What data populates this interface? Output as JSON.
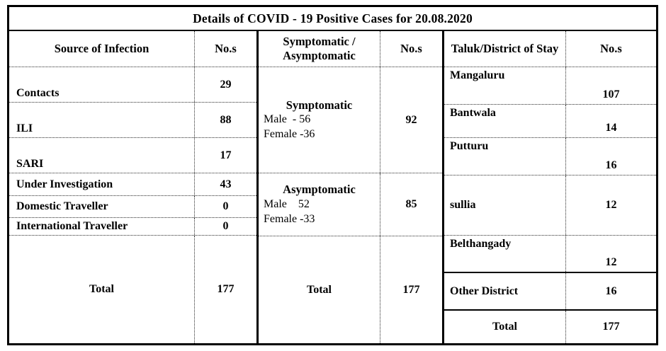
{
  "title": "Details of COVID - 19 Positive Cases for 20.08.2020",
  "headers": {
    "source": "Source of Infection",
    "nos": "No.s",
    "symptomatic": "Symptomatic / Asymptomatic",
    "taluk": "Taluk/District of Stay"
  },
  "source_of_infection": {
    "rows": [
      {
        "label": "Contacts",
        "value": "29"
      },
      {
        "label": "ILI",
        "value": "88"
      },
      {
        "label": "SARI",
        "value": "17"
      },
      {
        "label": "Under Investigation",
        "value": "43"
      },
      {
        "label": "Domestic Traveller",
        "value": "0"
      },
      {
        "label": "International Traveller",
        "value": "0"
      }
    ],
    "total": {
      "label": "Total",
      "value": "177"
    }
  },
  "symptomatic_status": {
    "blocks": [
      {
        "name": "Symptomatic",
        "male_line": "Male  - 56",
        "female_line": "Female -36",
        "value": "92"
      },
      {
        "name": "Asymptomatic",
        "male_line": "Male    52",
        "female_line": "Female -33",
        "value": "85"
      }
    ],
    "total": {
      "label": "Total",
      "value": "177"
    }
  },
  "taluk_district": {
    "rows": [
      {
        "label": "Mangaluru",
        "value": "107"
      },
      {
        "label": "Bantwala",
        "value": "14"
      },
      {
        "label": "Putturu",
        "value": "16"
      },
      {
        "label": "sullia",
        "value": "12"
      },
      {
        "label": "Belthangady",
        "value": "12"
      },
      {
        "label": "Other District",
        "value": "16"
      }
    ],
    "total": {
      "label": "Total",
      "value": "177"
    }
  },
  "colors": {
    "text": "#000000",
    "border": "#000000",
    "background": "#ffffff"
  }
}
